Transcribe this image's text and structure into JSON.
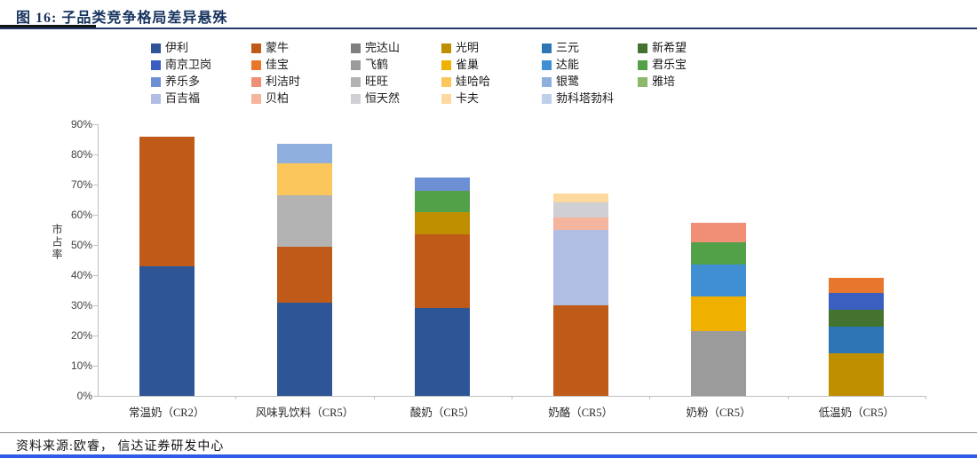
{
  "title": "图 16: 子品类竞争格局差异悬殊",
  "footer": {
    "source": "资料来源:欧睿， 信达证券研发中心"
  },
  "chart_data": {
    "type": "bar",
    "stacked": true,
    "title": "图 16: 子品类竞争格局差异悬殊",
    "xlabel": "",
    "ylabel": "市占率",
    "ylim": [
      0,
      90
    ],
    "yticks": [
      "0%",
      "10%",
      "20%",
      "30%",
      "40%",
      "50%",
      "60%",
      "70%",
      "80%",
      "90%"
    ],
    "grid": false,
    "legend_position": "top",
    "legend_columns": [
      [
        {
          "label": "伊利",
          "color": "#2e5596"
        },
        {
          "label": "南京卫岗",
          "color": "#3a5fc0"
        },
        {
          "label": "养乐多",
          "color": "#6d8fd4"
        },
        {
          "label": "百吉福",
          "color": "#b0bee3"
        }
      ],
      [
        {
          "label": "蒙牛",
          "color": "#c05a18"
        },
        {
          "label": "佳宝",
          "color": "#e8762c"
        },
        {
          "label": "利洁时",
          "color": "#f08e76"
        },
        {
          "label": "贝柏",
          "color": "#f5b49e"
        }
      ],
      [
        {
          "label": "完达山",
          "color": "#7f7f7f"
        },
        {
          "label": "飞鹤",
          "color": "#9b9b9b"
        },
        {
          "label": "旺旺",
          "color": "#b3b3b3"
        },
        {
          "label": "恒天然",
          "color": "#d0d0d4"
        }
      ],
      [
        {
          "label": "光明",
          "color": "#bf8f00"
        },
        {
          "label": "雀巢",
          "color": "#f0b000"
        },
        {
          "label": "娃哈哈",
          "color": "#fbc75c"
        },
        {
          "label": "卡夫",
          "color": "#fdd9a0"
        }
      ],
      [
        {
          "label": "三元",
          "color": "#2e75b6"
        },
        {
          "label": "达能",
          "color": "#3f8fd2"
        },
        {
          "label": "银鹭",
          "color": "#8fb0de"
        },
        {
          "label": "勃科塔勃科",
          "color": "#bdd0ea"
        }
      ],
      [
        {
          "label": "新希望",
          "color": "#44722f"
        },
        {
          "label": "君乐宝",
          "color": "#52a047"
        },
        {
          "label": "雅培",
          "color": "#8cb869"
        }
      ]
    ],
    "categories": [
      "常温奶（CR2）",
      "风味乳饮料（CR5）",
      "酸奶（CR5）",
      "奶酪（CR5）",
      "奶粉（CR5）",
      "低温奶（CR5）"
    ],
    "stacks": [
      {
        "category": "常温奶（CR2）",
        "segments": [
          {
            "brand": "伊利",
            "value": 43
          },
          {
            "brand": "蒙牛",
            "value": 43
          }
        ]
      },
      {
        "category": "风味乳饮料（CR5）",
        "segments": [
          {
            "brand": "伊利",
            "value": 31
          },
          {
            "brand": "蒙牛",
            "value": 18.5
          },
          {
            "brand": "旺旺",
            "value": 17
          },
          {
            "brand": "娃哈哈",
            "value": 10.5
          },
          {
            "brand": "银鹭",
            "value": 6.5
          }
        ]
      },
      {
        "category": "酸奶（CR5）",
        "segments": [
          {
            "brand": "伊利",
            "value": 29
          },
          {
            "brand": "蒙牛",
            "value": 24.5
          },
          {
            "brand": "光明",
            "value": 7.5
          },
          {
            "brand": "君乐宝",
            "value": 7
          },
          {
            "brand": "养乐多",
            "value": 4.5
          }
        ]
      },
      {
        "category": "奶酪（CR5）",
        "segments": [
          {
            "brand": "蒙牛",
            "value": 30
          },
          {
            "brand": "百吉福",
            "value": 25
          },
          {
            "brand": "贝柏",
            "value": 4
          },
          {
            "brand": "恒天然",
            "value": 5
          },
          {
            "brand": "卡夫",
            "value": 3
          }
        ]
      },
      {
        "category": "奶粉（CR5）",
        "segments": [
          {
            "brand": "飞鹤",
            "value": 21.5
          },
          {
            "brand": "雀巢",
            "value": 11.5
          },
          {
            "brand": "达能",
            "value": 10.5
          },
          {
            "brand": "君乐宝",
            "value": 7.5
          },
          {
            "brand": "利洁时",
            "value": 6.5
          }
        ]
      },
      {
        "category": "低温奶（CR5）",
        "segments": [
          {
            "brand": "光明",
            "value": 14
          },
          {
            "brand": "三元",
            "value": 9
          },
          {
            "brand": "新希望",
            "value": 5.5
          },
          {
            "brand": "南京卫岗",
            "value": 5.5
          },
          {
            "brand": "佳宝",
            "value": 5
          }
        ]
      }
    ]
  }
}
